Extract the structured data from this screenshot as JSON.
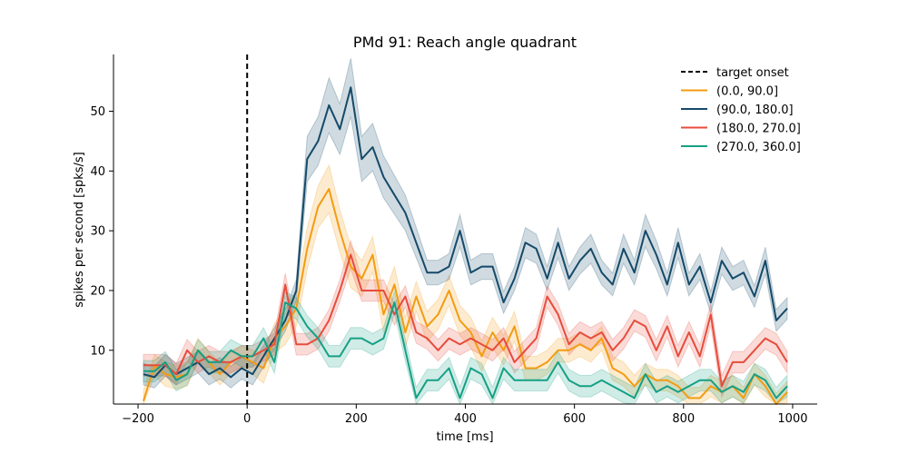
{
  "chart_data": {
    "type": "line",
    "title": "PMd 91: Reach angle quadrant",
    "xlabel": "time [ms]",
    "ylabel": "spikes per second [spks/s]",
    "xlim": [
      -245,
      1045
    ],
    "ylim": [
      1,
      59.5
    ],
    "xticks": [
      -200,
      0,
      200,
      400,
      600,
      800,
      1000
    ],
    "xtick_labels": [
      "−200",
      "0",
      "200",
      "400",
      "600",
      "800",
      "1000"
    ],
    "yticks": [
      10,
      20,
      30,
      40,
      50
    ],
    "ytick_labels": [
      "10",
      "20",
      "30",
      "40",
      "50"
    ],
    "grid": false,
    "legend_position": "top-right",
    "x": [
      -190,
      -170,
      -150,
      -130,
      -110,
      -90,
      -70,
      -50,
      -30,
      -10,
      10,
      30,
      50,
      70,
      90,
      110,
      130,
      150,
      170,
      190,
      210,
      230,
      250,
      270,
      290,
      310,
      330,
      350,
      370,
      390,
      410,
      430,
      450,
      470,
      490,
      510,
      530,
      550,
      570,
      590,
      610,
      630,
      650,
      670,
      690,
      710,
      730,
      750,
      770,
      790,
      810,
      830,
      850,
      870,
      890,
      910,
      930,
      950,
      970,
      990
    ],
    "annotation": {
      "type": "vline",
      "x": 0,
      "label": "target onset",
      "color": "#000000",
      "style": "dashed"
    },
    "series": [
      {
        "name": "(0.0, 90.0]",
        "color": "#f39c12",
        "values": [
          1.5,
          7.5,
          6,
          5.5,
          6,
          10,
          8,
          6,
          8,
          9,
          8,
          7,
          12,
          14,
          17,
          27,
          34,
          37,
          30,
          24,
          22,
          26,
          16,
          21,
          13,
          19,
          14,
          16,
          20,
          15,
          13,
          9,
          13,
          10,
          14,
          7,
          7,
          8,
          10,
          10,
          11,
          10,
          12,
          7,
          6,
          4,
          6,
          5,
          5,
          4,
          2,
          2,
          4,
          3,
          4,
          2,
          6,
          4,
          1,
          3
        ],
        "band": [
          1.8,
          1.8,
          2.0,
          2.0,
          2.0,
          2.0,
          1.8,
          1.8,
          1.8,
          1.8,
          2.0,
          2.5,
          2.5,
          3.0,
          3.0,
          3.5,
          3.5,
          4.0,
          3.5,
          3.5,
          3.0,
          3.0,
          3.0,
          3.0,
          2.5,
          2.5,
          2.5,
          2.5,
          2.5,
          2.5,
          2.5,
          2.5,
          2.5,
          2.5,
          2.5,
          2.0,
          2.0,
          2.0,
          2.0,
          2.0,
          2.0,
          2.0,
          2.0,
          2.0,
          2.0,
          1.8,
          1.8,
          1.8,
          1.8,
          1.8,
          1.8,
          1.8,
          1.8,
          1.8,
          1.8,
          1.8,
          1.8,
          1.8,
          1.8,
          1.8
        ]
      },
      {
        "name": "(90.0, 180.0]",
        "color": "#154a6a",
        "values": [
          6,
          5.5,
          7.5,
          6,
          7,
          8,
          6,
          7,
          5.5,
          7,
          6,
          9,
          12,
          15,
          20,
          42,
          45,
          51,
          47,
          54,
          42,
          44,
          39,
          36,
          33,
          28,
          23,
          23,
          24,
          30,
          23,
          24,
          24,
          18,
          22,
          28,
          27,
          22,
          28,
          22,
          25,
          27,
          23,
          21,
          27,
          23,
          30,
          26,
          21,
          28,
          21,
          24,
          18,
          25,
          22,
          23,
          19,
          25,
          15,
          17
        ]
      },
      {
        "name": "(180.0, 270.0]",
        "color": "#e74c3c",
        "values": [
          7.5,
          7.5,
          7.5,
          6,
          10,
          8,
          9,
          8,
          8,
          9,
          9,
          10,
          11,
          21,
          11,
          11,
          12,
          15,
          20,
          26,
          20,
          20,
          20,
          16,
          19,
          13,
          12,
          10,
          12,
          11,
          12,
          11,
          10,
          12,
          8,
          10,
          12,
          19,
          16,
          11,
          13,
          12,
          13,
          10,
          12,
          15,
          14,
          10,
          14,
          9,
          13,
          9,
          16,
          4,
          8,
          8,
          10,
          12,
          11,
          8
        ]
      },
      {
        "name": "(270.0, 360.0]",
        "color": "#16a085",
        "values": [
          6.5,
          6.5,
          8,
          5,
          6,
          10,
          8,
          8,
          10,
          9,
          9,
          12,
          8,
          18,
          17,
          14,
          12,
          9,
          9,
          12,
          12,
          11,
          12,
          18,
          10,
          2,
          5,
          5,
          7,
          2,
          7,
          6,
          2,
          7,
          5,
          5,
          5,
          5,
          8,
          5,
          4,
          4,
          5,
          4,
          3,
          2,
          6,
          3,
          4,
          3,
          4,
          5,
          5,
          3,
          4,
          3,
          6,
          5,
          2,
          4
        ]
      }
    ]
  }
}
